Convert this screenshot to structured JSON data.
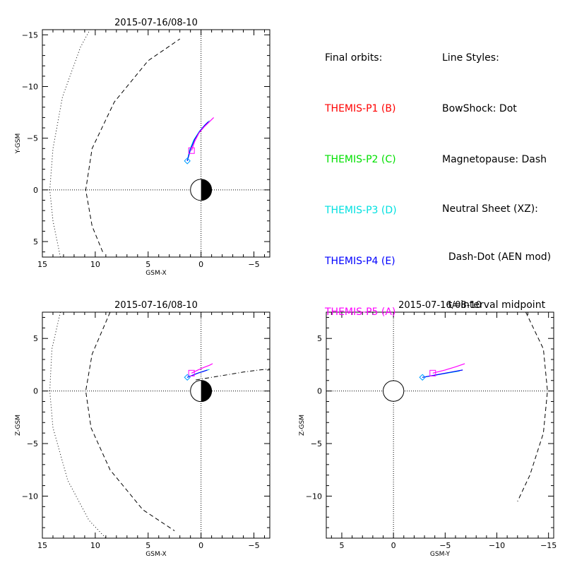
{
  "legend_orbits": {
    "heading": "Final orbits:",
    "items": [
      {
        "label": "THEMIS-P1 (B)",
        "color": "#ff0000"
      },
      {
        "label": "THEMIS-P2 (C)",
        "color": "#00e000"
      },
      {
        "label": "THEMIS-P3 (D)",
        "color": "#00e0e0"
      },
      {
        "label": "THEMIS-P4 (E)",
        "color": "#0000ff"
      },
      {
        "label": "THEMIS-P5 (A)",
        "color": "#ff00ff"
      }
    ]
  },
  "legend_styles": {
    "heading": "Line Styles:",
    "lines": [
      "BowShock: Dot",
      "Magnetopause: Dash",
      "Neutral Sheet (XZ):",
      "  Dash-Dot (AEN mod)",
      "  t=interval midpoint"
    ]
  },
  "chart_data": [
    {
      "type": "line",
      "title": "2015-07-16/08-10",
      "xlabel": "GSM-X",
      "ylabel": "Y-GSM",
      "xlim": [
        15,
        -6.5
      ],
      "ylim": [
        6.5,
        -15.5
      ],
      "xticks": [
        15,
        10,
        5,
        0,
        -5
      ],
      "yticks": [
        5,
        0,
        -5,
        -10,
        -15
      ],
      "xtick_labels": [
        "15",
        "10",
        "5",
        "0",
        "−5"
      ],
      "ytick_labels": [
        "5",
        "0",
        "−5",
        "−10",
        "−15"
      ],
      "earth": {
        "day_side": "positive-x"
      },
      "bowshock": {
        "style": "dot",
        "x": [
          13.3,
          14.0,
          14.3,
          14.0,
          13.1,
          11.4,
          10.5
        ],
        "y": [
          6.5,
          3.0,
          0,
          -4.0,
          -9.0,
          -13.8,
          -15.5
        ]
      },
      "magnetopause": {
        "style": "dash",
        "x": [
          9.3,
          10.3,
          10.9,
          10.3,
          8.2,
          5.0,
          2.0
        ],
        "y": [
          6.0,
          3.5,
          0,
          -4.0,
          -8.5,
          -12.5,
          -14.6
        ]
      },
      "series": [
        {
          "name": "THEMIS-P3 (D)",
          "color": "#00e0e0",
          "x": [
            1.3,
            1.1,
            0.7,
            0.2,
            -0.3,
            -0.8
          ],
          "y": [
            -2.8,
            -3.8,
            -4.8,
            -5.6,
            -6.2,
            -6.7
          ]
        },
        {
          "name": "THEMIS-P4 (E)",
          "color": "#0000ff",
          "x": [
            1.3,
            1.0,
            0.6,
            0.1,
            -0.4,
            -0.7
          ],
          "y": [
            -2.8,
            -3.9,
            -4.9,
            -5.7,
            -6.3,
            -6.6
          ]
        },
        {
          "name": "THEMIS-P5 (A)",
          "color": "#ff00ff",
          "x": [
            0.9,
            0.6,
            0.2,
            -0.3,
            -0.8,
            -1.2
          ],
          "y": [
            -3.8,
            -4.7,
            -5.5,
            -6.1,
            -6.6,
            -7.0
          ]
        }
      ],
      "markers": [
        {
          "name": "THEMIS-P5 (A)",
          "shape": "square",
          "color": "#ff00ff",
          "x": 0.9,
          "y": -3.8
        },
        {
          "name": "THEMIS-P4 (E)",
          "shape": "diamond",
          "color": "#00a0ff",
          "x": 1.3,
          "y": -2.8
        }
      ]
    },
    {
      "type": "line",
      "title": "2015-07-16/08-10",
      "xlabel": "GSM-X",
      "ylabel": "Z-GSM",
      "xlim": [
        15,
        -6.5
      ],
      "ylim": [
        -14,
        7.5
      ],
      "xticks": [
        15,
        10,
        5,
        0,
        -5
      ],
      "yticks": [
        5,
        0,
        -5,
        -10
      ],
      "xtick_labels": [
        "15",
        "10",
        "5",
        "0",
        "−5"
      ],
      "ytick_labels": [
        "5",
        "0",
        "−5",
        "−10"
      ],
      "earth": {
        "day_side": "positive-x"
      },
      "bowshock": {
        "style": "dot",
        "x": [
          13.3,
          14.1,
          14.3,
          14.0,
          12.6,
          10.6,
          9.0
        ],
        "y": [
          7.5,
          4.0,
          0,
          -3.5,
          -8.5,
          -12.3,
          -14.0
        ]
      },
      "magnetopause": {
        "style": "dash",
        "x": [
          8.6,
          10.3,
          10.9,
          10.4,
          8.6,
          5.5,
          2.5
        ],
        "y": [
          7.5,
          3.5,
          0,
          -3.5,
          -7.5,
          -11.3,
          -13.3
        ]
      },
      "neutral_sheet": {
        "style": "dash-dot",
        "x": [
          0.5,
          -1.0,
          -2.5,
          -4.0,
          -5.5,
          -6.5
        ],
        "y": [
          1.05,
          1.3,
          1.55,
          1.8,
          2.0,
          2.1
        ]
      },
      "series": [
        {
          "name": "THEMIS-P3 (D)",
          "color": "#00e0e0",
          "x": [
            1.3,
            0.8,
            0.3,
            -0.3,
            -0.8
          ],
          "y": [
            1.3,
            1.5,
            1.7,
            1.9,
            2.05
          ]
        },
        {
          "name": "THEMIS-P4 (E)",
          "color": "#0000ff",
          "x": [
            1.3,
            0.8,
            0.3,
            -0.2,
            -0.6
          ],
          "y": [
            1.3,
            1.5,
            1.7,
            1.85,
            2.0
          ]
        },
        {
          "name": "THEMIS-P5 (A)",
          "color": "#ff00ff",
          "x": [
            0.9,
            0.3,
            -0.3,
            -0.8,
            -1.1
          ],
          "y": [
            1.7,
            2.0,
            2.25,
            2.45,
            2.6
          ]
        }
      ],
      "markers": [
        {
          "name": "THEMIS-P5 (A)",
          "shape": "square",
          "color": "#ff00ff",
          "x": 0.9,
          "y": 1.7
        },
        {
          "name": "THEMIS-P4 (E)",
          "shape": "diamond",
          "color": "#00a0ff",
          "x": 1.3,
          "y": 1.3
        }
      ]
    },
    {
      "type": "line",
      "title": "2015-07-16/08-10",
      "xlabel": "GSM-Y",
      "ylabel": "Z-GSM",
      "xlim": [
        6.5,
        -15.5
      ],
      "ylim": [
        -14,
        7.5
      ],
      "xticks": [
        5,
        0,
        -5,
        -10,
        -15
      ],
      "yticks": [
        5,
        0,
        -5,
        -10
      ],
      "xtick_labels": [
        "5",
        "0",
        "−5",
        "−10",
        "−15"
      ],
      "ytick_labels": [
        "5",
        "0",
        "−5",
        "−10"
      ],
      "earth": {
        "day_side": "none"
      },
      "magnetopause": {
        "style": "dash",
        "x": [
          -12.8,
          -14.5,
          -14.9,
          -14.5,
          -13.2,
          -12.0
        ],
        "y": [
          7.5,
          4.0,
          0,
          -4.0,
          -8.0,
          -10.5
        ]
      },
      "series": [
        {
          "name": "THEMIS-P3 (D)",
          "color": "#00e0e0",
          "x": [
            -2.8,
            -4.0,
            -5.2,
            -6.4
          ],
          "y": [
            1.3,
            1.5,
            1.7,
            1.9
          ]
        },
        {
          "name": "THEMIS-P4 (E)",
          "color": "#0000ff",
          "x": [
            -2.8,
            -4.2,
            -5.6,
            -6.7
          ],
          "y": [
            1.3,
            1.55,
            1.8,
            2.0
          ]
        },
        {
          "name": "THEMIS-P5 (A)",
          "color": "#ff00ff",
          "x": [
            -3.8,
            -5.0,
            -6.0,
            -6.9
          ],
          "y": [
            1.7,
            2.0,
            2.3,
            2.6
          ]
        }
      ],
      "markers": [
        {
          "name": "THEMIS-P5 (A)",
          "shape": "square",
          "color": "#ff00ff",
          "x": -3.8,
          "y": 1.7
        },
        {
          "name": "THEMIS-P4 (E)",
          "shape": "diamond",
          "color": "#00a0ff",
          "x": -2.8,
          "y": 1.3
        }
      ]
    }
  ]
}
